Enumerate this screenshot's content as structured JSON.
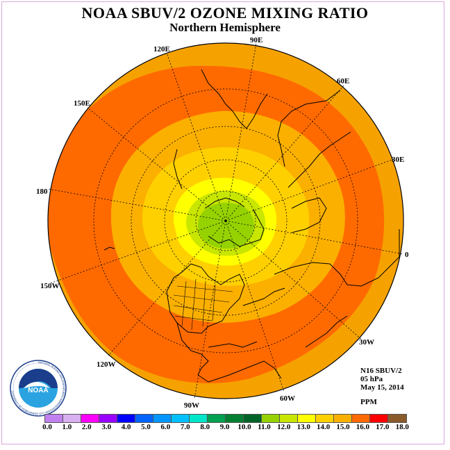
{
  "header": {
    "title": "NOAA SBUV/2 OZONE MIXING RATIO",
    "subtitle": "Northern Hemisphere"
  },
  "map": {
    "projection": "north-polar-stereographic",
    "longitude_labels": [
      "90E",
      "60E",
      "30E",
      "0",
      "30W",
      "60W",
      "90W",
      "120W",
      "150W",
      "180",
      "150E",
      "120E"
    ],
    "background_color": "#f5a200",
    "contour_colors": {
      "15_to_16": "#ff6a00",
      "14_to_15": "#fbb000",
      "13_to_14": "#ffd000",
      "12_to_13": "#ffff00",
      "11_to_12": "#c8e600",
      "10_to_11": "#96d200"
    }
  },
  "info": {
    "instrument": "N16 SBUV/2",
    "level": "05 hPa",
    "date": "May 15, 2014",
    "units": "PPM"
  },
  "logo": {
    "text": "NOAA",
    "ring_text": "NATIONAL OCEANIC AND ATMOSPHERIC ADMINISTRATION · U.S. DEPARTMENT OF COMMERCE"
  },
  "colorbar": {
    "colors": [
      "#c080f0",
      "#d8b0f0",
      "#ff00ff",
      "#9900ff",
      "#0000ff",
      "#0064ff",
      "#0096ff",
      "#00c0ff",
      "#00e6c8",
      "#00a050",
      "#008030",
      "#006428",
      "#96d200",
      "#c8e600",
      "#ffff00",
      "#ffd000",
      "#fbb000",
      "#ff6a00",
      "#ff0000",
      "#8b5a2b"
    ],
    "ticks": [
      "0.0",
      "1.0",
      "2.0",
      "3.0",
      "4.0",
      "5.0",
      "6.0",
      "7.0",
      "8.0",
      "9.0",
      "10.0",
      "11.0",
      "12.0",
      "13.0",
      "14.0",
      "15.0",
      "16.0",
      "17.0",
      "18.0"
    ]
  }
}
